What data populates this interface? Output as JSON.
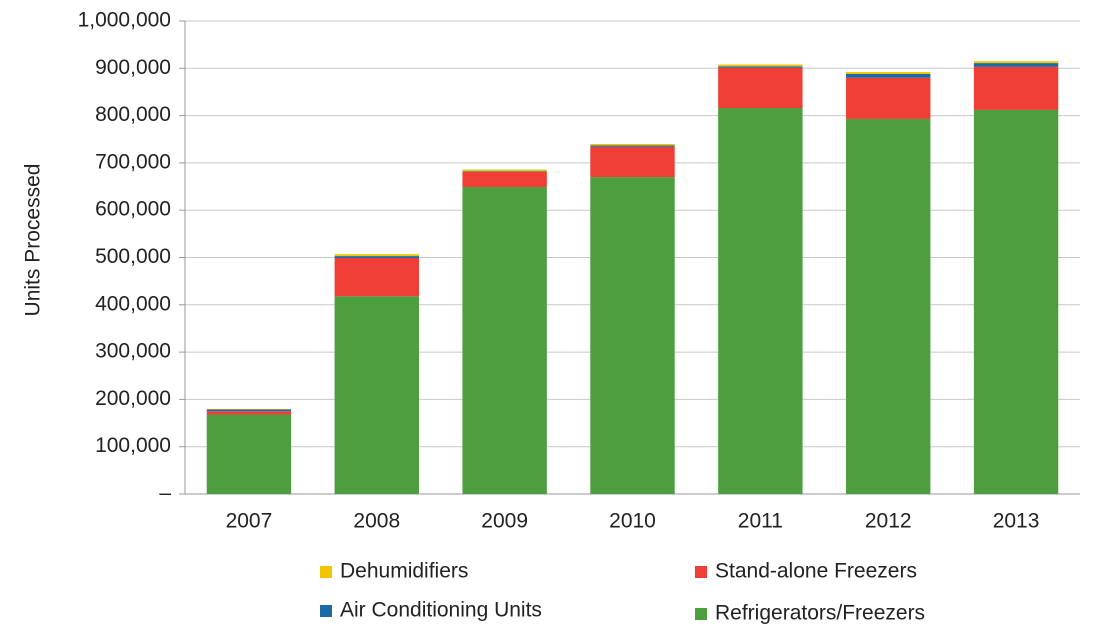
{
  "chart_data": {
    "type": "stacked_bar",
    "y_label": "Units Processed",
    "categories": [
      "2007",
      "2008",
      "2009",
      "2010",
      "2011",
      "2012",
      "2013"
    ],
    "series": [
      {
        "name": "Refrigerators/Freezers",
        "color": "#4c9e3f",
        "values": [
          168000,
          418000,
          649000,
          670000,
          816000,
          793000,
          812000
        ]
      },
      {
        "name": "Stand-alone Freezers",
        "color": "#ef3e36",
        "values": [
          7000,
          81000,
          32000,
          64000,
          85000,
          87000,
          91000
        ]
      },
      {
        "name": "Air Conditioning Units",
        "color": "#1b6aa5",
        "values": [
          4000,
          4000,
          1500,
          3000,
          3000,
          8000,
          8000
        ]
      },
      {
        "name": "Dehumidifiers",
        "color": "#f2c500",
        "values": [
          1000,
          4000,
          3500,
          3000,
          4000,
          4000,
          4000
        ]
      }
    ],
    "ylim": [
      0,
      1000000
    ],
    "yticks": [
      {
        "value": 0,
        "label": "–"
      },
      {
        "value": 100000,
        "label": "100,000"
      },
      {
        "value": 200000,
        "label": "200,000"
      },
      {
        "value": 300000,
        "label": "300,000"
      },
      {
        "value": 400000,
        "label": "400,000"
      },
      {
        "value": 500000,
        "label": "500,000"
      },
      {
        "value": 600000,
        "label": "600,000"
      },
      {
        "value": 700000,
        "label": "700,000"
      },
      {
        "value": 800000,
        "label": "800,000"
      },
      {
        "value": 900000,
        "label": "900,000"
      },
      {
        "value": 1000000,
        "label": "1,000,000"
      }
    ],
    "grid": true
  }
}
